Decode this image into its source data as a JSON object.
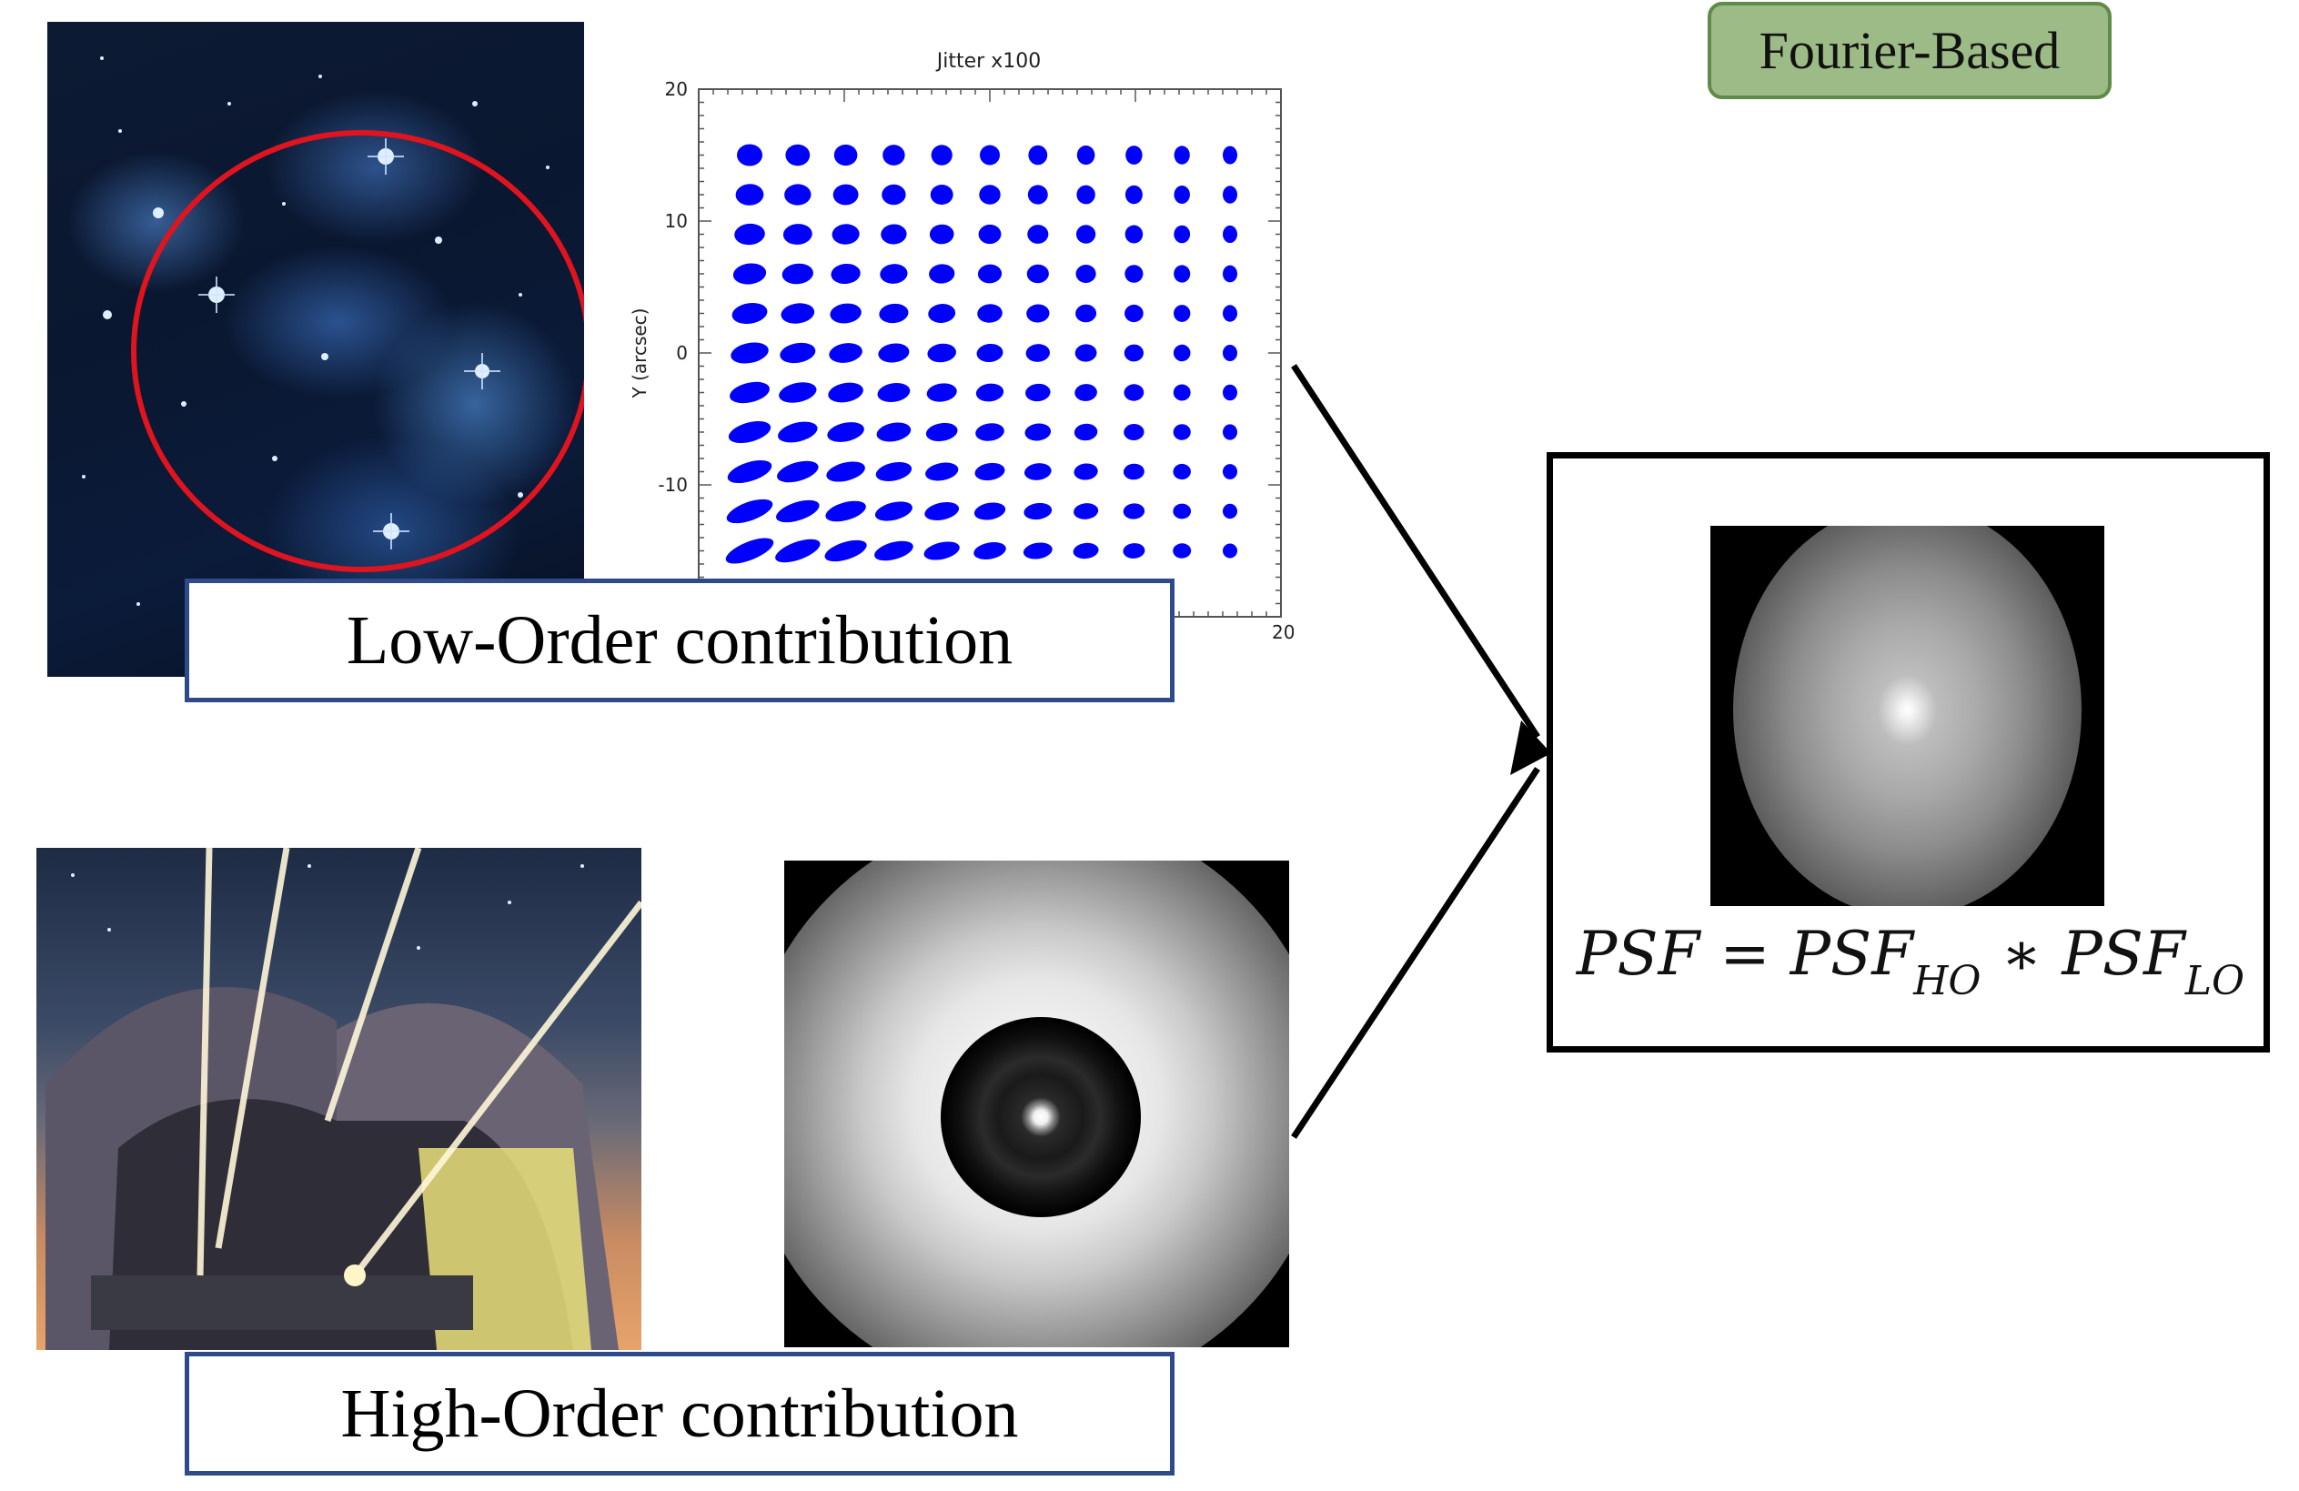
{
  "badge": {
    "label": "Fourier-Based",
    "fill": "#9cbb86",
    "border": "#5f8a48"
  },
  "low_order": {
    "label": "Low-Order contribution",
    "border": "#2e4a8a"
  },
  "high_order": {
    "label": "High-Order contribution",
    "border": "#2e4a8a"
  },
  "equation": {
    "lhs": "PSF",
    "equals": "=",
    "term1": "PSF",
    "term1_sub": "HO",
    "operator": "∗",
    "term2": "PSF",
    "term2_sub": "LO"
  },
  "chart_data": {
    "type": "scatter",
    "title": "Jitter x100",
    "xlabel": "",
    "ylabel": "Y (arcsec)",
    "ylim": [
      -20,
      20
    ],
    "xlim": [
      -20,
      20
    ],
    "y_ticks": [
      "20",
      "10",
      "0",
      "-10"
    ],
    "x_ticks_visible": [
      "20"
    ],
    "grid": false,
    "marker_color": "#0000ff",
    "columns": 11,
    "rows": 11,
    "x": [
      -16.5,
      -13.2,
      -9.9,
      -6.6,
      -3.3,
      0,
      3.3,
      6.6,
      9.9,
      13.2,
      16.5
    ],
    "y": [
      15,
      12,
      9,
      6,
      3,
      0,
      -3,
      -6,
      -9,
      -12,
      -15
    ]
  },
  "icons": {
    "starfield": "pleiades-starfield-image",
    "telescope": "telescope-laser-guide-stars-image",
    "ho_psf": "high-order-psf-image",
    "combined_psf": "combined-psf-image"
  }
}
